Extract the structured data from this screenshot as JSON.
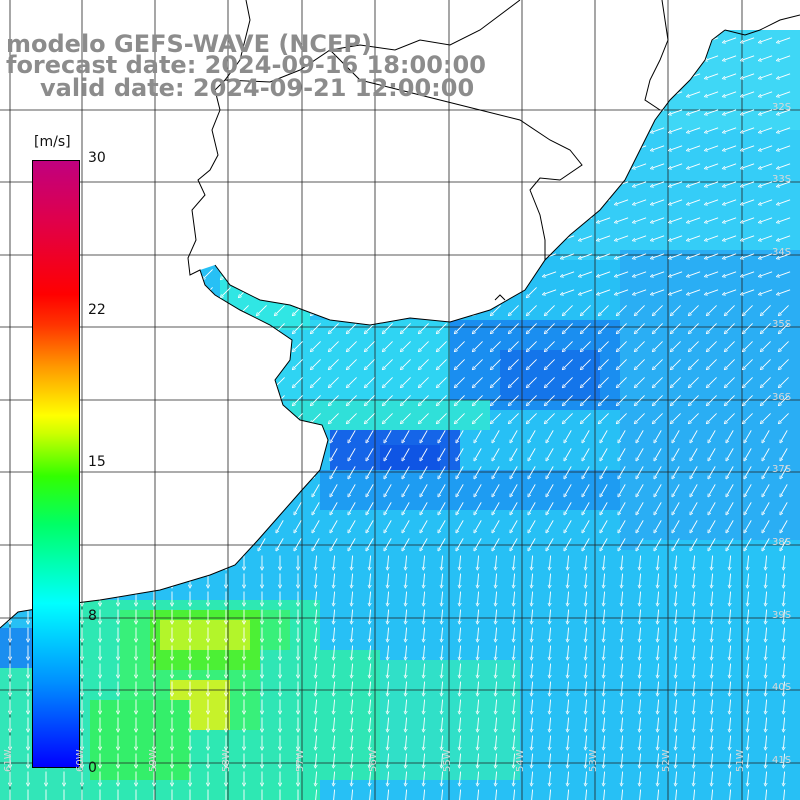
{
  "title": {
    "line1": "modelo GEFS-WAVE (NCEP)",
    "line2": "forecast date: 2024-09-16 18:00:00",
    "line3": "valid date: 2024-09-21 12:00:00"
  },
  "colorbar": {
    "unit": "[m/s]",
    "ticks": [
      "30",
      "22",
      "15",
      "8",
      "0"
    ],
    "tick_values": [
      30,
      22,
      15,
      8,
      0
    ],
    "colors": [
      "#0000ff",
      "#00ffff",
      "#00ff00",
      "#ffff00",
      "#ff0000",
      "#c0007f"
    ]
  },
  "grid": {
    "lat_labels": [
      "32S",
      "33S",
      "34S",
      "35S",
      "36S",
      "37S",
      "38S",
      "39S",
      "40S",
      "41S"
    ],
    "lon_labels": [
      "61W",
      "60W",
      "59W",
      "58W",
      "57W",
      "56W",
      "55W",
      "54W",
      "53W",
      "52W",
      "51W"
    ]
  },
  "map_data": {
    "variable": "wind speed",
    "units": "m/s",
    "color_scale": [
      0,
      30
    ]
  }
}
